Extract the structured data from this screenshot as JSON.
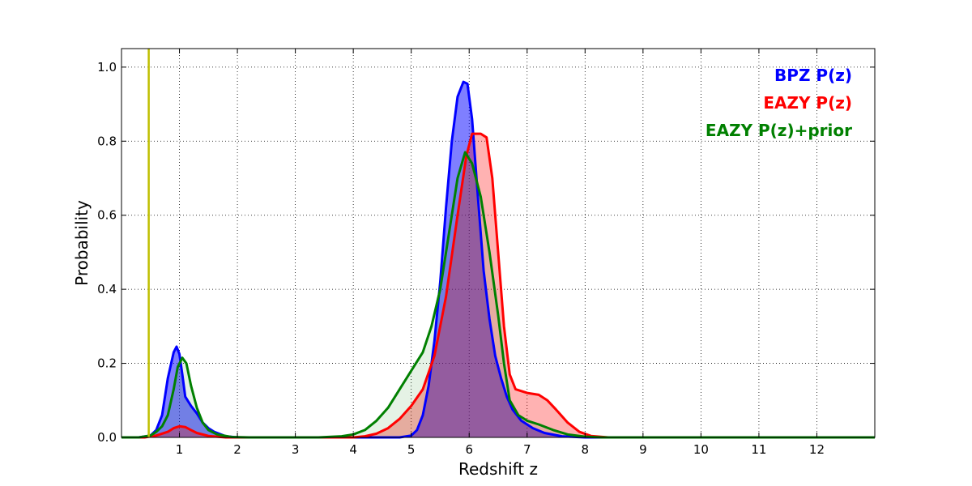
{
  "chart_data": {
    "type": "area",
    "xlabel": "Redshift z",
    "ylabel": "Probability",
    "xlim": [
      0,
      13
    ],
    "ylim": [
      0,
      1.05
    ],
    "xticks": [
      1,
      2,
      3,
      4,
      5,
      6,
      7,
      8,
      9,
      10,
      11,
      12
    ],
    "xtick_labels": [
      "1",
      "2",
      "3",
      "4",
      "5",
      "6",
      "7",
      "8",
      "9",
      "10",
      "11",
      "12"
    ],
    "yticks": [
      0.0,
      0.2,
      0.4,
      0.6,
      0.8,
      1.0
    ],
    "ytick_labels": [
      "0.0",
      "0.2",
      "0.4",
      "0.6",
      "0.8",
      "1.0"
    ],
    "grid": true,
    "legend_position": "top-right",
    "vline": {
      "x": 0.47,
      "color": "#bfbf00"
    },
    "series": [
      {
        "name": "BPZ P(z)",
        "color": "#0000ff",
        "fill": "#0000ff",
        "fill_opacity": 0.5,
        "points": [
          [
            0.0,
            0
          ],
          [
            0.3,
            0
          ],
          [
            0.5,
            0.005
          ],
          [
            0.6,
            0.02
          ],
          [
            0.7,
            0.06
          ],
          [
            0.8,
            0.16
          ],
          [
            0.9,
            0.23
          ],
          [
            0.95,
            0.245
          ],
          [
            1.0,
            0.225
          ],
          [
            1.05,
            0.17
          ],
          [
            1.1,
            0.11
          ],
          [
            1.2,
            0.085
          ],
          [
            1.3,
            0.065
          ],
          [
            1.4,
            0.04
          ],
          [
            1.5,
            0.025
          ],
          [
            1.6,
            0.015
          ],
          [
            1.8,
            0.003
          ],
          [
            2.0,
            0
          ],
          [
            4.8,
            0
          ],
          [
            5.0,
            0.005
          ],
          [
            5.1,
            0.02
          ],
          [
            5.2,
            0.06
          ],
          [
            5.3,
            0.14
          ],
          [
            5.4,
            0.26
          ],
          [
            5.5,
            0.42
          ],
          [
            5.6,
            0.62
          ],
          [
            5.7,
            0.8
          ],
          [
            5.8,
            0.92
          ],
          [
            5.9,
            0.96
          ],
          [
            5.97,
            0.955
          ],
          [
            6.05,
            0.86
          ],
          [
            6.15,
            0.65
          ],
          [
            6.25,
            0.45
          ],
          [
            6.35,
            0.32
          ],
          [
            6.45,
            0.22
          ],
          [
            6.55,
            0.16
          ],
          [
            6.65,
            0.11
          ],
          [
            6.75,
            0.075
          ],
          [
            6.9,
            0.045
          ],
          [
            7.1,
            0.025
          ],
          [
            7.3,
            0.012
          ],
          [
            7.6,
            0.003
          ],
          [
            8.0,
            0
          ],
          [
            13.0,
            0
          ]
        ]
      },
      {
        "name": "EAZY P(z)",
        "color": "#ff0000",
        "fill": "#ff0000",
        "fill_opacity": 0.3,
        "points": [
          [
            0.0,
            0
          ],
          [
            0.4,
            0
          ],
          [
            0.6,
            0.005
          ],
          [
            0.8,
            0.015
          ],
          [
            0.9,
            0.025
          ],
          [
            1.0,
            0.03
          ],
          [
            1.1,
            0.028
          ],
          [
            1.2,
            0.02
          ],
          [
            1.3,
            0.012
          ],
          [
            1.5,
            0.004
          ],
          [
            1.8,
            0
          ],
          [
            4.0,
            0
          ],
          [
            4.2,
            0.003
          ],
          [
            4.4,
            0.01
          ],
          [
            4.6,
            0.025
          ],
          [
            4.8,
            0.05
          ],
          [
            5.0,
            0.085
          ],
          [
            5.2,
            0.13
          ],
          [
            5.4,
            0.22
          ],
          [
            5.6,
            0.38
          ],
          [
            5.8,
            0.6
          ],
          [
            5.95,
            0.76
          ],
          [
            6.05,
            0.82
          ],
          [
            6.2,
            0.82
          ],
          [
            6.3,
            0.81
          ],
          [
            6.4,
            0.7
          ],
          [
            6.5,
            0.5
          ],
          [
            6.6,
            0.3
          ],
          [
            6.7,
            0.17
          ],
          [
            6.8,
            0.13
          ],
          [
            7.0,
            0.12
          ],
          [
            7.2,
            0.115
          ],
          [
            7.35,
            0.1
          ],
          [
            7.5,
            0.075
          ],
          [
            7.7,
            0.04
          ],
          [
            7.9,
            0.015
          ],
          [
            8.1,
            0.004
          ],
          [
            8.4,
            0
          ],
          [
            13.0,
            0
          ]
        ]
      },
      {
        "name": "EAZY P(z)+prior",
        "color": "#008000",
        "fill": "#008000",
        "fill_opacity": 0.1,
        "points": [
          [
            0.0,
            0
          ],
          [
            0.3,
            0
          ],
          [
            0.5,
            0.005
          ],
          [
            0.6,
            0.015
          ],
          [
            0.7,
            0.03
          ],
          [
            0.8,
            0.06
          ],
          [
            0.9,
            0.13
          ],
          [
            0.97,
            0.19
          ],
          [
            1.05,
            0.215
          ],
          [
            1.12,
            0.2
          ],
          [
            1.2,
            0.14
          ],
          [
            1.3,
            0.08
          ],
          [
            1.4,
            0.04
          ],
          [
            1.5,
            0.02
          ],
          [
            1.65,
            0.008
          ],
          [
            1.9,
            0.001
          ],
          [
            2.2,
            0
          ],
          [
            3.4,
            0
          ],
          [
            3.8,
            0.003
          ],
          [
            4.0,
            0.008
          ],
          [
            4.2,
            0.02
          ],
          [
            4.4,
            0.045
          ],
          [
            4.6,
            0.08
          ],
          [
            4.8,
            0.13
          ],
          [
            5.0,
            0.18
          ],
          [
            5.2,
            0.23
          ],
          [
            5.35,
            0.3
          ],
          [
            5.5,
            0.4
          ],
          [
            5.65,
            0.55
          ],
          [
            5.8,
            0.7
          ],
          [
            5.93,
            0.77
          ],
          [
            6.05,
            0.74
          ],
          [
            6.2,
            0.65
          ],
          [
            6.35,
            0.5
          ],
          [
            6.5,
            0.33
          ],
          [
            6.6,
            0.2
          ],
          [
            6.7,
            0.1
          ],
          [
            6.85,
            0.06
          ],
          [
            7.0,
            0.045
          ],
          [
            7.2,
            0.035
          ],
          [
            7.45,
            0.02
          ],
          [
            7.7,
            0.008
          ],
          [
            8.0,
            0.002
          ],
          [
            8.3,
            0
          ],
          [
            13.0,
            0
          ]
        ]
      }
    ]
  }
}
